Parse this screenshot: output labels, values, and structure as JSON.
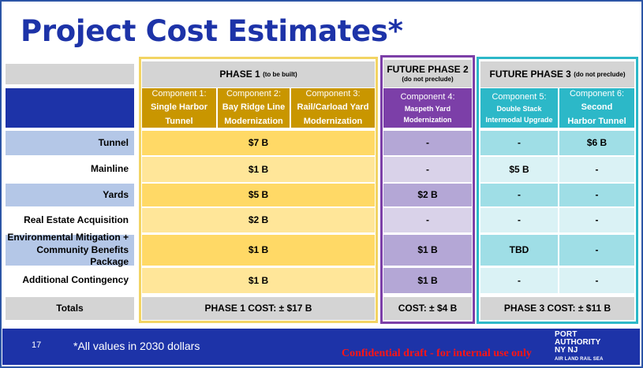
{
  "title": "Project Cost Estimates*",
  "phases": {
    "phase1": {
      "label": "PHASE 1",
      "note": "(to be built)"
    },
    "phase2": {
      "label": "FUTURE PHASE 2",
      "note": "(do not preclude)"
    },
    "phase3": {
      "label": "FUTURE PHASE 3",
      "note": "(do not preclude)"
    }
  },
  "components": [
    {
      "label": "Component 1:",
      "name": "Single Harbor Tunnel"
    },
    {
      "label": "Component 2:",
      "name": "Bay Ridge Line Modernization"
    },
    {
      "label": "Component 3:",
      "name": "Rail/Carload Yard Modernization"
    },
    {
      "label": "Component 4:",
      "name": "Maspeth Yard Modernization"
    },
    {
      "label": "Component 5:",
      "name": "Double Stack Intermodal Upgrade"
    },
    {
      "label": "Component 6:",
      "name": "Second Harbor Tunnel"
    }
  ],
  "rows": [
    {
      "label": "Tunnel",
      "phase1": "$7 B",
      "phase2": "-",
      "c5": "-",
      "c6": "$6 B"
    },
    {
      "label": "Mainline",
      "phase1": "$1 B",
      "phase2": "-",
      "c5": "$5 B",
      "c6": "-"
    },
    {
      "label": "Yards",
      "phase1": "$5 B",
      "phase2": "$2 B",
      "c5": "-",
      "c6": "-"
    },
    {
      "label": "Real Estate Acquisition",
      "phase1": "$2 B",
      "phase2": "-",
      "c5": "-",
      "c6": "-"
    },
    {
      "label": "Environmental Mitigation + Community Benefits Package",
      "phase1": "$1 B",
      "phase2": "$1 B",
      "c5": "TBD",
      "c6": "-"
    },
    {
      "label": "Additional Contingency",
      "phase1": "$1 B",
      "phase2": "$1 B",
      "c5": "-",
      "c6": "-"
    }
  ],
  "totals": {
    "label": "Totals",
    "phase1": "PHASE 1 COST: ± $17 B",
    "phase2": "COST: ± $4 B",
    "phase3": "PHASE 3 COST: ± $11 B"
  },
  "footer": {
    "page_number": "17",
    "note": "*All values in 2030 dollars",
    "confidential": "Confidential draft - for internal use only",
    "logo_line1": "PORT",
    "logo_line2": "AUTHORITY",
    "logo_line3": "NY NJ",
    "logo_tagline": "AIR LAND RAIL SEA"
  },
  "colors": {
    "title_blue": "#1d33a8",
    "phase1_gold": "#c99600",
    "phase1_outline": "#f2d463",
    "phase2_purple": "#7c3fa8",
    "phase3_teal": "#2cb8c8",
    "label_blue": "#b4c7e7",
    "header_gray": "#d4d4d4",
    "confidential_red": "#ff1414"
  }
}
